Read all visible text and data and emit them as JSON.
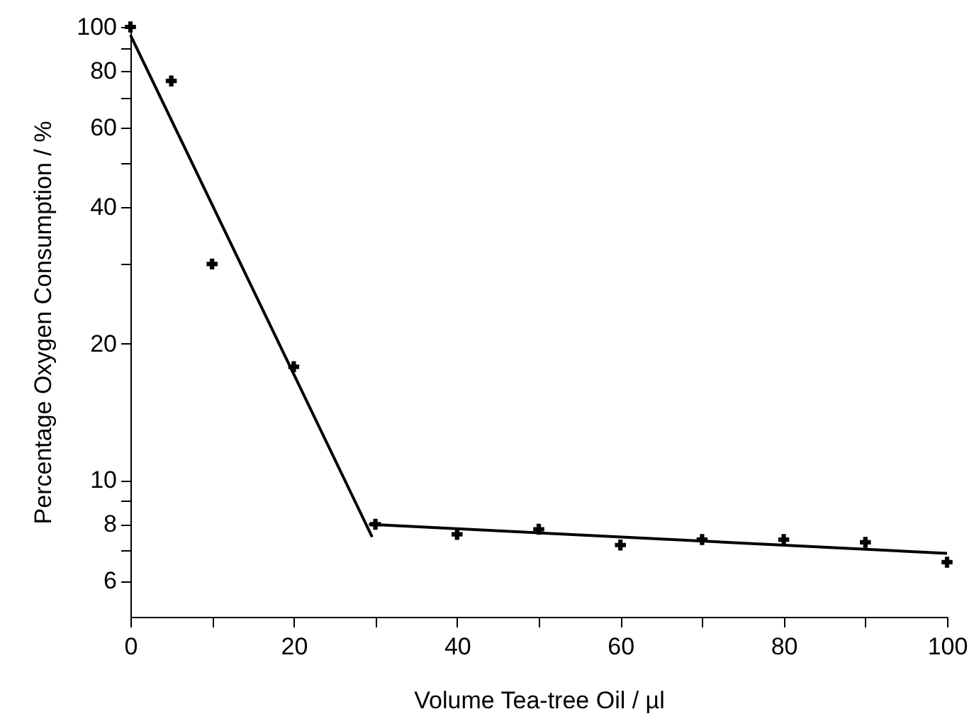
{
  "chart_data": {
    "type": "scatter",
    "xlabel": "Volume Tea-tree Oil / µl",
    "ylabel": "Percentage Oxygen Consumption / %",
    "log": "y",
    "grid": false,
    "xlim": [
      0,
      100
    ],
    "xticks": [
      0,
      {
        "value": 10,
        "label": null
      },
      20,
      {
        "value": 30,
        "label": null
      },
      40,
      {
        "value": 50,
        "label": null
      },
      60,
      {
        "value": 70,
        "label": null
      },
      80,
      {
        "value": 90,
        "label": null
      },
      100
    ],
    "ylim": [
      5,
      100
    ],
    "yticks": [
      6,
      {
        "value": 7,
        "label": null
      },
      8,
      {
        "value": 9,
        "label": null
      },
      10,
      20,
      {
        "value": 30,
        "label": null
      },
      40,
      {
        "value": 50,
        "label": null
      },
      60,
      {
        "value": 70,
        "label": null
      },
      80,
      {
        "value": 90,
        "label": null
      },
      100
    ],
    "series": [
      {
        "color": "#000000",
        "marker": "cross",
        "x": [
          0,
          5,
          10,
          20,
          30,
          40,
          50,
          60,
          70,
          80,
          90,
          100
        ],
        "values": [
          100,
          76,
          30,
          17.8,
          8.0,
          7.6,
          7.8,
          7.2,
          7.4,
          7.4,
          7.3,
          6.6
        ]
      },
      {
        "type": "line",
        "color": "#000000",
        "marker": "none",
        "line_style": "solid",
        "x": [
          0,
          29.6
        ],
        "values": [
          96,
          7.5
        ]
      },
      {
        "type": "line",
        "color": "#000000",
        "marker": "none",
        "line_style": "solid",
        "x": [
          29.2,
          100
        ],
        "values": [
          8.0,
          6.9
        ]
      }
    ]
  }
}
